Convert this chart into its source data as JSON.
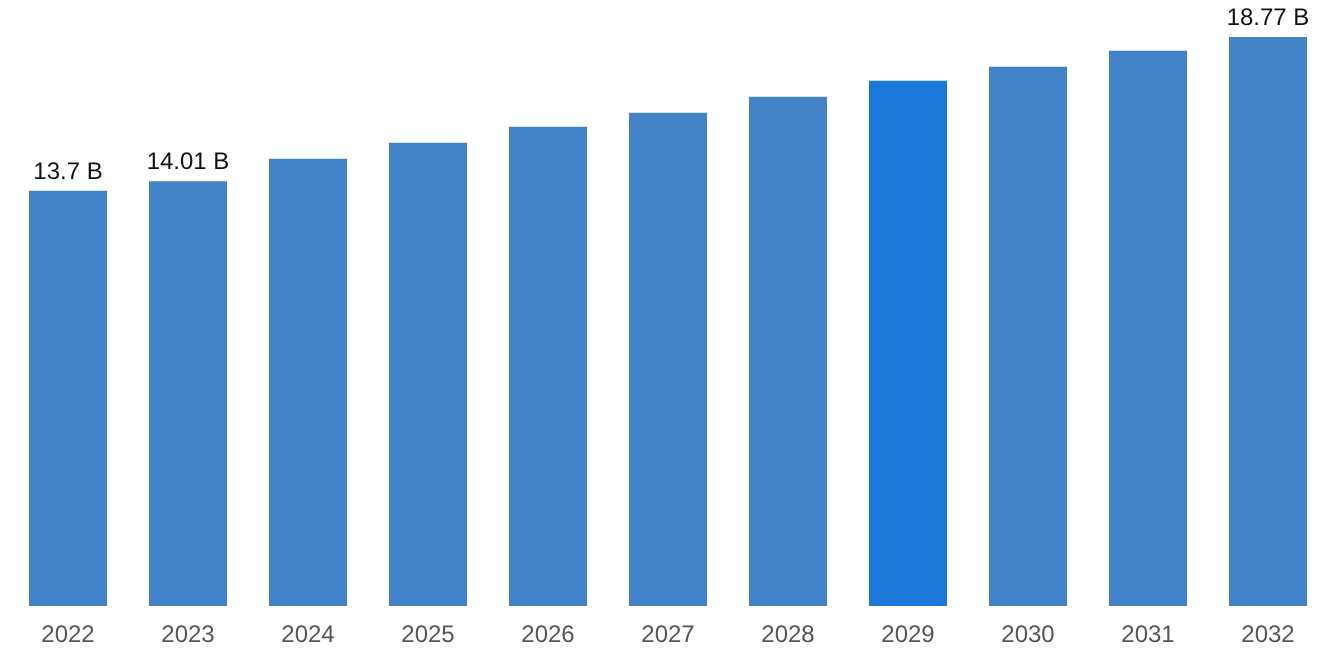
{
  "chart_data": {
    "type": "bar",
    "categories": [
      "2022",
      "2023",
      "2024",
      "2025",
      "2026",
      "2027",
      "2028",
      "2029",
      "2030",
      "2031",
      "2032"
    ],
    "values": [
      13.7,
      14.01,
      14.75,
      15.28,
      15.81,
      16.27,
      16.8,
      17.33,
      17.79,
      18.32,
      18.77
    ],
    "colors": [
      "#4282c6",
      "#4282c6",
      "#4282c6",
      "#4282c6",
      "#4282c6",
      "#4282c6",
      "#4282c6",
      "#1b78d8",
      "#4282c6",
      "#4282c6",
      "#4282c6"
    ],
    "value_labels": [
      "13.7 B",
      "14.01 B",
      null,
      null,
      null,
      null,
      null,
      null,
      null,
      null,
      "18.77 B"
    ]
  }
}
